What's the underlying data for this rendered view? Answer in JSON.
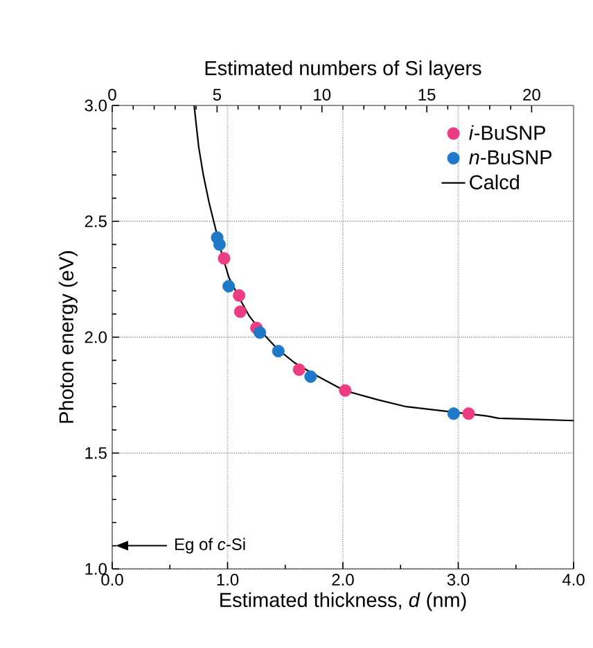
{
  "chart_data": {
    "type": "scatter",
    "xlabel": "Estimated thickness, *d* (nm)",
    "ylabel": "Photon energy (eV)",
    "x2label": "Estimated numbers of Si layers",
    "xlim": [
      0,
      4
    ],
    "xticks": [
      {
        "value": 0,
        "label": "0.0"
      },
      {
        "value": 1,
        "label": "1.0"
      },
      {
        "value": 2,
        "label": "2.0"
      },
      {
        "value": 3,
        "label": "3.0"
      },
      {
        "value": 4,
        "label": "4.0"
      }
    ],
    "ylim": [
      1,
      3
    ],
    "yticks": [
      {
        "value": 1,
        "label": "1.0"
      },
      {
        "value": 1.5,
        "label": "1.5"
      },
      {
        "value": 2,
        "label": "2.0"
      },
      {
        "value": 2.5,
        "label": "2.5"
      },
      {
        "value": 3,
        "label": "3.0"
      }
    ],
    "x2lim": [
      0,
      22
    ],
    "x2ticks": [
      0,
      5,
      10,
      15,
      20
    ],
    "grid": true,
    "legend": "top right",
    "annotations": [
      "Eg of *c*-Si"
    ],
    "series": [
      {
        "name": "*i*-BuSNP",
        "color": "#ec3c82",
        "marker": "circle",
        "x": [
          0.97,
          1.1,
          1.11,
          1.25,
          1.62,
          2.02,
          3.09
        ],
        "values": [
          2.34,
          2.18,
          2.11,
          2.04,
          1.86,
          1.77,
          1.67
        ]
      },
      {
        "name": "*n*-BuSNP",
        "color": "#1f78c8",
        "marker": "circle",
        "x": [
          0.91,
          0.93,
          1.01,
          1.28,
          1.44,
          1.72,
          2.96
        ],
        "values": [
          2.43,
          2.4,
          2.22,
          2.02,
          1.94,
          1.83,
          1.67
        ]
      },
      {
        "name": "Calcd",
        "color": "#000000",
        "type": "line",
        "marker": "none",
        "line_style": "solid",
        "x": [
          0.71,
          0.75,
          0.79,
          0.84,
          0.89,
          0.95,
          1.01,
          1.1,
          1.19,
          1.3,
          1.43,
          1.58,
          1.75,
          2.01,
          2.3,
          2.55,
          3.25,
          3.35,
          3.7,
          4.0
        ],
        "values": [
          3.0,
          2.82,
          2.7,
          2.58,
          2.48,
          2.36,
          2.26,
          2.17,
          2.09,
          2.02,
          1.95,
          1.89,
          1.84,
          1.77,
          1.73,
          1.7,
          1.66,
          1.65,
          1.645,
          1.64
        ]
      }
    ]
  }
}
